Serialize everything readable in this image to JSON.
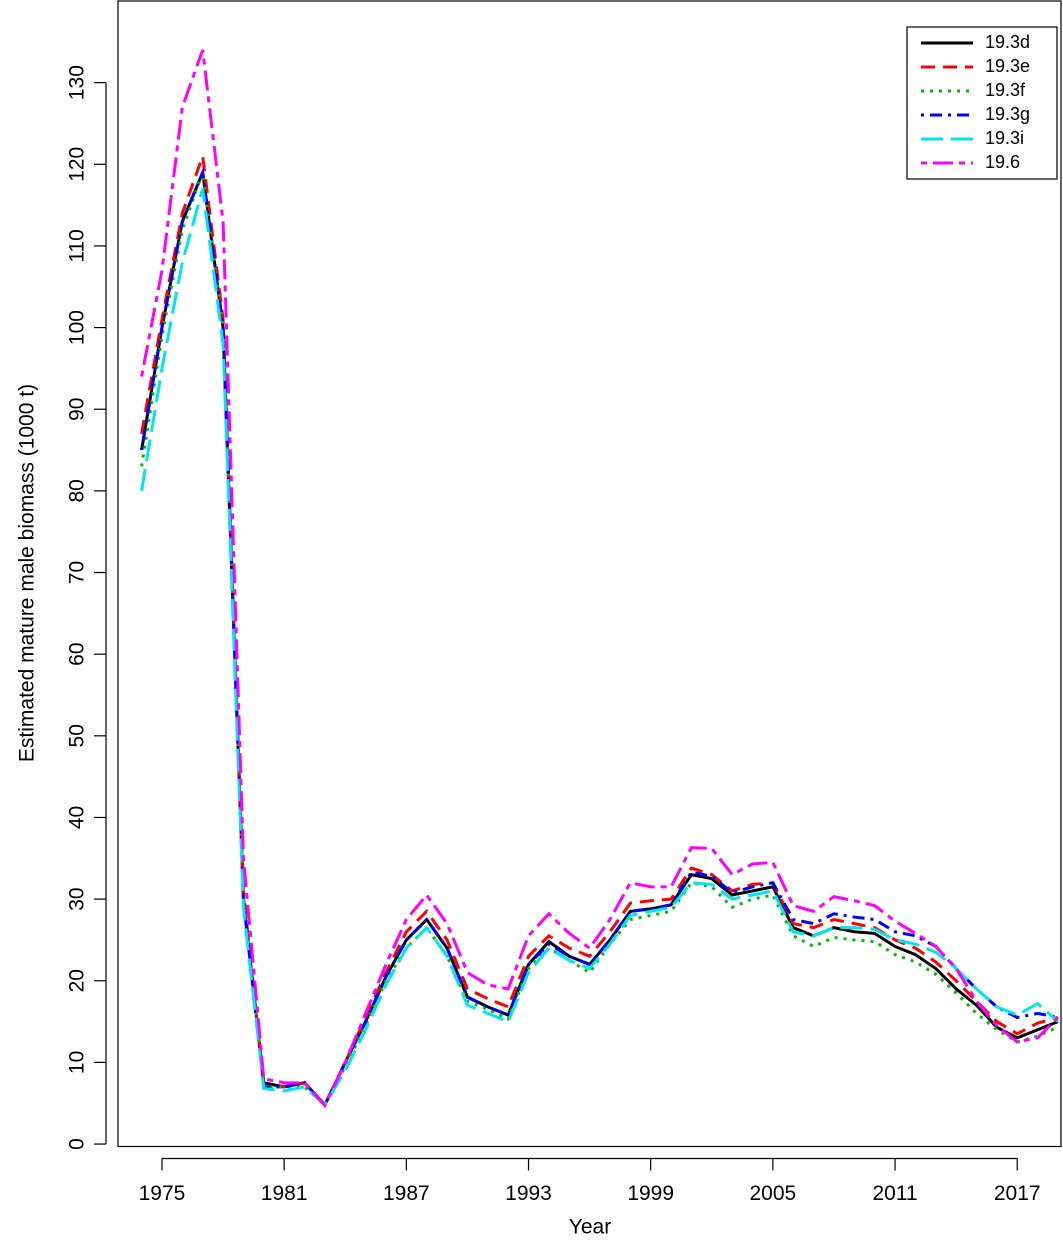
{
  "chart_data": {
    "type": "line",
    "x_label": "Year",
    "y_label": "Estimated mature male biomass (1000 t)",
    "x": [
      1974,
      1975,
      1976,
      1977,
      1978,
      1979,
      1980,
      1981,
      1982,
      1983,
      1984,
      1985,
      1986,
      1987,
      1988,
      1989,
      1990,
      1991,
      1992,
      1993,
      1994,
      1995,
      1996,
      1997,
      1998,
      1999,
      2000,
      2001,
      2002,
      2003,
      2004,
      2005,
      2006,
      2007,
      2008,
      2009,
      2010,
      2011,
      2012,
      2013,
      2014,
      2015,
      2016,
      2017,
      2018,
      2019
    ],
    "xlim": [
      1972.84,
      2019.15
    ],
    "xticks": [
      1975,
      1981,
      1987,
      1993,
      1999,
      2005,
      2011,
      2017
    ],
    "ylim": [
      -0.3,
      140
    ],
    "yticks": [
      0,
      10,
      20,
      30,
      40,
      50,
      60,
      70,
      80,
      90,
      100,
      110,
      120,
      130
    ],
    "legend": "top-right",
    "series": [
      {
        "name": "19.3d",
        "color": "#000000",
        "dash": "solid",
        "values": [
          85,
          100,
          113,
          119,
          100,
          30,
          7.5,
          7,
          7.5,
          4.8,
          10,
          15,
          20.5,
          25,
          27.5,
          24,
          18,
          16.8,
          15.8,
          22,
          24.8,
          23,
          22,
          25,
          28.5,
          28.8,
          29.3,
          33,
          32.5,
          30.5,
          31,
          31.5,
          26.5,
          25.5,
          26.5,
          26,
          25.8,
          24.2,
          23.2,
          21.5,
          19,
          17,
          14.3,
          13,
          14,
          15
        ]
      },
      {
        "name": "19.3e",
        "color": "#ff0000",
        "dash": "dashed",
        "values": [
          87,
          101,
          114,
          121,
          101,
          31,
          7,
          7,
          7.5,
          4.8,
          10,
          15.5,
          21,
          26,
          28.5,
          25,
          19,
          17.8,
          16.8,
          23,
          25.5,
          24,
          23,
          26,
          29.5,
          29.8,
          30,
          33.8,
          33,
          31,
          31.8,
          32,
          27,
          26.5,
          27.5,
          27,
          26.5,
          25,
          24,
          22.3,
          20,
          17.5,
          15,
          13.5,
          14.8,
          15.5
        ]
      },
      {
        "name": "19.3f",
        "color": "#00bb00",
        "dash": "dotted",
        "values": [
          83,
          99,
          112,
          119,
          100,
          30,
          7,
          7,
          7,
          4.8,
          9.5,
          14.5,
          20,
          24,
          26.5,
          23,
          17.5,
          16.5,
          15.3,
          21.5,
          24,
          22.5,
          21,
          24.5,
          27.5,
          28,
          28.5,
          32,
          31.5,
          29,
          30,
          30.5,
          25.5,
          24.2,
          25.3,
          25,
          24.8,
          23.2,
          22.3,
          20.8,
          18.5,
          16,
          14,
          12.5,
          13.2,
          14.3
        ]
      },
      {
        "name": "19.3g",
        "color": "#0000ff",
        "dash": "dotdash",
        "values": [
          85,
          100,
          113,
          119,
          100,
          30,
          7,
          7,
          7.5,
          4.8,
          10,
          15,
          20.5,
          25,
          27.5,
          24,
          18,
          16.8,
          15.8,
          22,
          24.5,
          23,
          22,
          25,
          28.5,
          28.8,
          29.3,
          33.3,
          32.8,
          30.8,
          31.5,
          32,
          27.5,
          27,
          28.2,
          27.8,
          27.5,
          26,
          25.5,
          24.2,
          21.5,
          19,
          16.8,
          15.5,
          16,
          15.5
        ]
      },
      {
        "name": "19.3i",
        "color": "#00e5ee",
        "dash": "longdash",
        "values": [
          80,
          95,
          108,
          117,
          98,
          29,
          6.8,
          6.5,
          7,
          4.8,
          9,
          14,
          19.5,
          24,
          26.5,
          23,
          17,
          16,
          15,
          21,
          24,
          22.5,
          21.5,
          24.5,
          28,
          28.5,
          29,
          32,
          31.8,
          30,
          30.5,
          31,
          26,
          25.5,
          26.5,
          26.5,
          26.3,
          25,
          24.5,
          23.5,
          21.5,
          19,
          16.8,
          15.8,
          17.2,
          15
        ]
      },
      {
        "name": "19.6",
        "color": "#ff00ff",
        "dash": "twodash",
        "values": [
          94,
          107,
          127,
          134,
          113,
          35,
          8,
          7.5,
          7.5,
          4.7,
          10,
          16,
          22,
          27.5,
          30.5,
          27,
          21,
          19.5,
          19,
          25.5,
          28.2,
          25.8,
          24,
          27.5,
          32,
          31.5,
          31.5,
          36.3,
          36.2,
          33,
          34.3,
          34.5,
          29.2,
          28.5,
          30.3,
          29.8,
          29.2,
          27.3,
          25.8,
          24.2,
          21.5,
          17.5,
          14.5,
          12.5,
          13,
          15.5
        ]
      }
    ]
  }
}
